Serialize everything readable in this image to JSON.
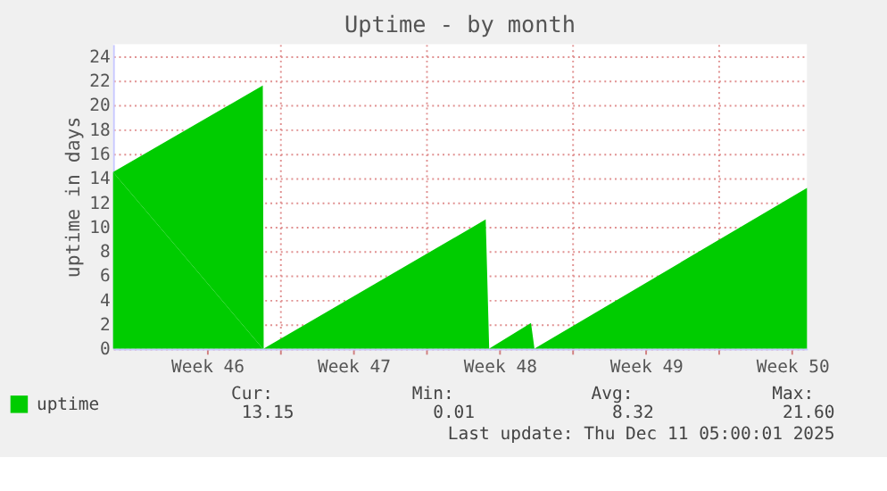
{
  "chart_data": {
    "type": "area",
    "title": "Uptime - by month",
    "ylabel": "uptime in days",
    "x": [
      "2025-11-08T00:00",
      "2025-11-15T04:00",
      "2025-11-15T05:00",
      "2025-11-25T20:00",
      "2025-11-26T00:00",
      "2025-11-28T00:00",
      "2025-11-28T04:00",
      "2025-12-11T05:00"
    ],
    "series": [
      {
        "name": "uptime",
        "color": "#00cc00",
        "values": [
          14.5,
          21.6,
          0,
          10.6,
          0,
          2.1,
          0,
          13.2
        ]
      }
    ],
    "xlim": [
      "2025-11-08T00:00",
      "2025-12-11T05:00"
    ],
    "xticks": [
      {
        "value": "2025-11-12T12:00",
        "label": "Week 46"
      },
      {
        "value": "2025-11-16T00:00",
        "label": null
      },
      {
        "value": "2025-11-19T12:00",
        "label": "Week 47"
      },
      {
        "value": "2025-11-23T00:00",
        "label": null
      },
      {
        "value": "2025-11-26T12:00",
        "label": "Week 48"
      },
      {
        "value": "2025-11-30T00:00",
        "label": null
      },
      {
        "value": "2025-12-03T12:00",
        "label": "Week 49"
      },
      {
        "value": "2025-12-07T00:00",
        "label": null
      },
      {
        "value": "2025-12-10T12:00",
        "label": "Week 50"
      }
    ],
    "ylim": [
      0,
      25
    ],
    "yticks": [
      0,
      2,
      4,
      6,
      8,
      10,
      12,
      14,
      16,
      18,
      20,
      22,
      24
    ],
    "grid": true,
    "legend": "bottom left",
    "annotations": [
      "Cur:",
      "Min:",
      "Avg:",
      "Max:",
      "13.15",
      "0.01",
      "8.32",
      "21.60",
      "Last update: Thu Dec 11 05:00:01 2025"
    ]
  }
}
